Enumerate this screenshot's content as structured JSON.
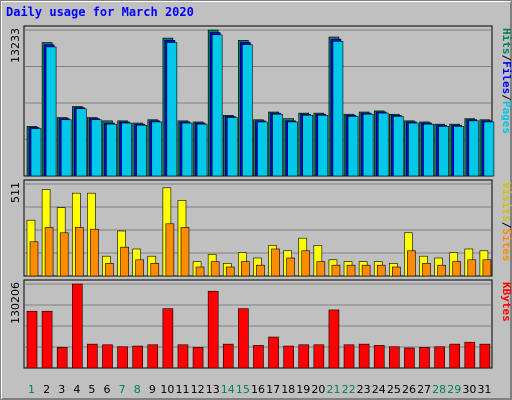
{
  "chart_data": [
    {
      "type": "bar",
      "title": "Daily usage for March 2020",
      "panel": "pages-files-hits",
      "ymax_label": "13233",
      "ylim": [
        0,
        13233
      ],
      "legend": [
        "Pages",
        "/",
        "Files",
        "/",
        "Hits"
      ],
      "colors": {
        "hits": "#00805c",
        "files": "#0000ff",
        "pages": "#00c8e8",
        "legend_pages": "#00c8e8",
        "legend_files": "#0000ff",
        "legend_hits": "#00805c"
      },
      "categories": [
        "1",
        "2",
        "3",
        "4",
        "5",
        "6",
        "7",
        "8",
        "9",
        "10",
        "11",
        "12",
        "13",
        "14",
        "15",
        "16",
        "17",
        "18",
        "19",
        "20",
        "21",
        "22",
        "23",
        "24",
        "25",
        "26",
        "27",
        "28",
        "29",
        "30",
        "31"
      ],
      "series": [
        {
          "name": "Hits",
          "values": [
            4500,
            12100,
            5300,
            6300,
            5300,
            5000,
            5000,
            4800,
            5100,
            12500,
            5000,
            4900,
            13233,
            5500,
            12300,
            5100,
            5800,
            5200,
            5700,
            5700,
            12600,
            5600,
            5800,
            5900,
            5600,
            5000,
            4900,
            4700,
            4700,
            5200,
            5100
          ]
        },
        {
          "name": "Files",
          "values": [
            4400,
            11900,
            5200,
            6200,
            5200,
            4800,
            4900,
            4700,
            5000,
            12300,
            4900,
            4800,
            13000,
            5400,
            12100,
            5000,
            5700,
            5000,
            5600,
            5600,
            12400,
            5500,
            5700,
            5800,
            5500,
            4900,
            4800,
            4600,
            4600,
            5100,
            5000
          ]
        },
        {
          "name": "Pages",
          "values": [
            4300,
            11700,
            5100,
            6100,
            5100,
            4700,
            4800,
            4600,
            4900,
            12100,
            4800,
            4700,
            12800,
            5300,
            11900,
            4900,
            5600,
            4900,
            5500,
            5500,
            12200,
            5400,
            5600,
            5700,
            5400,
            4800,
            4700,
            4500,
            4500,
            5000,
            4900
          ]
        }
      ]
    },
    {
      "type": "bar",
      "panel": "sites-visits",
      "ymax_label": "511",
      "ylim": [
        0,
        511
      ],
      "legend": [
        "Sites",
        "/",
        "Visits"
      ],
      "colors": {
        "visits": "#ffff00",
        "sites": "#ff8c00",
        "legend_sites": "#ff8c00",
        "legend_visits": "#d4c000"
      },
      "categories": [
        "1",
        "2",
        "3",
        "4",
        "5",
        "6",
        "7",
        "8",
        "9",
        "10",
        "11",
        "12",
        "13",
        "14",
        "15",
        "16",
        "17",
        "18",
        "19",
        "20",
        "21",
        "22",
        "23",
        "24",
        "25",
        "26",
        "27",
        "28",
        "29",
        "30",
        "31"
      ],
      "series": [
        {
          "name": "Visits",
          "values": [
            310,
            480,
            380,
            460,
            460,
            110,
            250,
            150,
            110,
            490,
            420,
            80,
            120,
            70,
            130,
            100,
            170,
            140,
            210,
            170,
            90,
            80,
            80,
            80,
            70,
            240,
            110,
            100,
            130,
            150,
            140
          ]
        },
        {
          "name": "Sites",
          "values": [
            190,
            270,
            240,
            270,
            260,
            70,
            160,
            90,
            70,
            290,
            270,
            50,
            80,
            50,
            80,
            60,
            150,
            100,
            140,
            80,
            60,
            60,
            60,
            60,
            50,
            140,
            70,
            60,
            80,
            90,
            90
          ]
        }
      ]
    },
    {
      "type": "bar",
      "panel": "kbytes",
      "ymax_label": "130206",
      "ylim": [
        0,
        130206
      ],
      "legend": [
        "KBytes"
      ],
      "colors": {
        "kbytes": "#ff0000",
        "legend_kbytes": "#ff0000"
      },
      "categories": [
        "1",
        "2",
        "3",
        "4",
        "5",
        "6",
        "7",
        "8",
        "9",
        "10",
        "11",
        "12",
        "13",
        "14",
        "15",
        "16",
        "17",
        "18",
        "19",
        "20",
        "21",
        "22",
        "23",
        "24",
        "25",
        "26",
        "27",
        "28",
        "29",
        "30",
        "31"
      ],
      "series": [
        {
          "name": "KBytes",
          "values": [
            88000,
            88000,
            32000,
            130206,
            37000,
            36000,
            33000,
            34000,
            36000,
            92000,
            36000,
            32000,
            119000,
            37000,
            92000,
            35000,
            48000,
            34000,
            36000,
            36000,
            90000,
            36000,
            37000,
            35000,
            33000,
            31000,
            32000,
            33000,
            37000,
            40000,
            37000
          ]
        }
      ]
    }
  ],
  "day_label_colors": {
    "weekday": "#000000",
    "weekend": "#00805c"
  },
  "weekend_days": [
    "1",
    "7",
    "8",
    "14",
    "15",
    "21",
    "22",
    "28",
    "29"
  ]
}
